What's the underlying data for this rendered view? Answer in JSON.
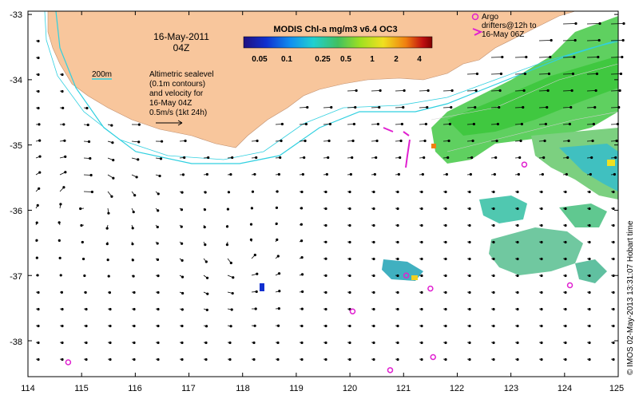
{
  "map": {
    "date_label": "16-May-2011",
    "time_label": "04Z",
    "colorbar_title": "MODIS Chl-a mg/m3 v6.4 OC3",
    "colorbar_ticks": [
      "0.05",
      "0.1",
      "0.25",
      "0.5",
      "1",
      "2",
      "4"
    ],
    "depth_label": "200m",
    "sealevel_note": [
      "Altimetric sealevel",
      "(0.1m contours)",
      "and velocity for",
      "16-May 04Z",
      "0.5m/s (1kt 24h)"
    ],
    "argo_note": [
      "Argo",
      "drifters@12h to",
      "16-May 06Z"
    ],
    "side_text": "© IMOS 02-May-2013 13:31:07 Hobart time",
    "lon_ticks": [
      "114",
      "115",
      "116",
      "117",
      "118",
      "119",
      "120",
      "121",
      "122",
      "123",
      "124",
      "125"
    ],
    "lat_ticks": [
      "-33",
      "-34",
      "-35",
      "-36",
      "-37",
      "-38"
    ],
    "lon_range": [
      114,
      125
    ],
    "lat_range": [
      -38.55,
      -32.95
    ],
    "colors": {
      "land": "#f8c69c",
      "argo": "#e020d0",
      "contour_200m": "#30d0e0",
      "arrow": "#000000",
      "colorbar": [
        "#201080",
        "#1030d0",
        "#1090f0",
        "#20d0d0",
        "#40c060",
        "#a0e020",
        "#f0e020",
        "#f08010",
        "#c01010",
        "#800000"
      ]
    },
    "argo_floats": [
      {
        "lon": 123.25,
        "lat": -35.3
      },
      {
        "lon": 124.1,
        "lat": -37.15
      },
      {
        "lon": 121.05,
        "lat": -37.0
      },
      {
        "lon": 121.5,
        "lat": -37.2
      },
      {
        "lon": 120.05,
        "lat": -37.55
      },
      {
        "lon": 121.55,
        "lat": -38.25
      },
      {
        "lon": 120.75,
        "lat": -38.45
      },
      {
        "lon": 114.75,
        "lat": -38.33
      }
    ]
  }
}
